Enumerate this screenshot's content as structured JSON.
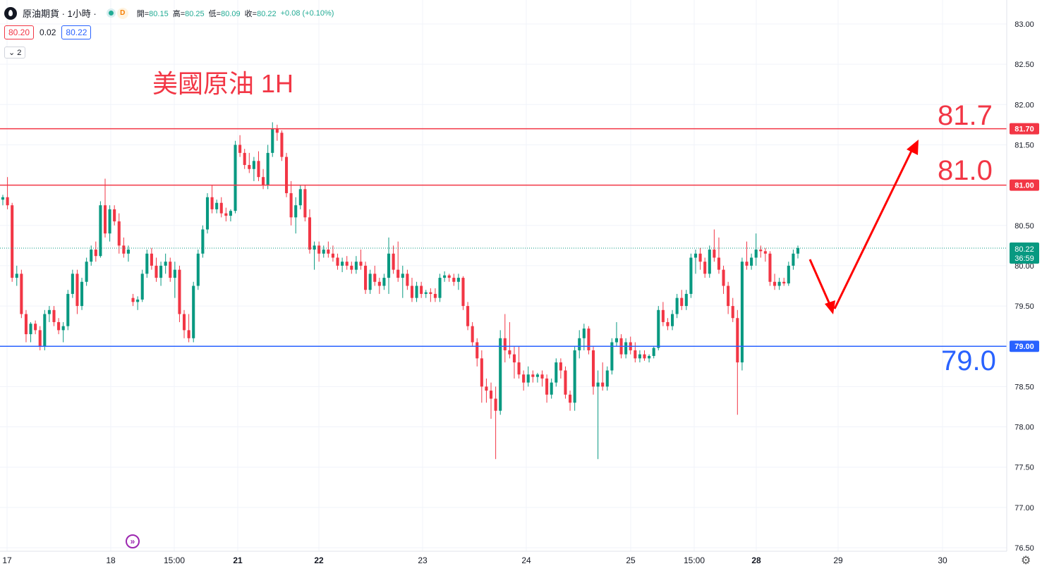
{
  "header": {
    "title": "原油期貨 · 1小時 ·",
    "badge_d": "D",
    "open_label": "開=",
    "open_value": "80.15",
    "high_label": "高=",
    "high_value": "80.25",
    "low_label": "低=",
    "low_value": "80.09",
    "close_label": "收=",
    "close_value": "80.22",
    "change_value": "+0.08 (+0.10%)",
    "bid": "80.20",
    "spread": "0.02",
    "ask": "80.22",
    "indicators_count": "2"
  },
  "annotation": {
    "text": "美國原油 1H"
  },
  "level_labels": [
    {
      "text": "81.7",
      "price": 81.7,
      "color": "#f23645"
    },
    {
      "text": "81.0",
      "price": 81.0,
      "color": "#f23645"
    },
    {
      "text": "79.0",
      "price": 79.0,
      "color": "#2962ff"
    }
  ],
  "chart_data": {
    "type": "candlestick",
    "y_axis": {
      "ticks": [
        "83.00",
        "82.50",
        "82.00",
        "81.50",
        "81.00",
        "80.50",
        "80.00",
        "79.50",
        "79.00",
        "78.50",
        "78.00",
        "77.50",
        "77.00",
        "76.50"
      ],
      "range": [
        76.5,
        83.0
      ]
    },
    "x_axis": {
      "ticks": [
        "17",
        "18",
        "15:00",
        "21",
        "22",
        "23",
        "24",
        "25",
        "15:00",
        "28",
        "29",
        "30"
      ]
    },
    "horizontal_lines": [
      {
        "price": 81.7,
        "label": "81.70",
        "color": "#f23645"
      },
      {
        "price": 81.0,
        "label": "81.00",
        "color": "#f23645"
      },
      {
        "price": 79.0,
        "label": "79.00",
        "color": "#2962ff"
      }
    ],
    "last_price": {
      "value": "80.22",
      "countdown": "36:59",
      "color": "#089981"
    },
    "candles": [
      [
        80.82,
        80.88,
        80.75,
        80.85
      ],
      [
        80.85,
        81.1,
        80.7,
        80.75
      ],
      [
        80.75,
        80.78,
        79.8,
        79.85
      ],
      [
        79.85,
        80.0,
        79.75,
        79.9
      ],
      [
        79.9,
        79.95,
        79.35,
        79.4
      ],
      [
        79.4,
        79.45,
        79.05,
        79.15
      ],
      [
        79.15,
        79.3,
        79.05,
        79.28
      ],
      [
        79.28,
        79.32,
        79.15,
        79.2
      ],
      [
        79.2,
        79.25,
        78.95,
        79.0
      ],
      [
        79.0,
        79.45,
        78.95,
        79.4
      ],
      [
        79.4,
        79.5,
        79.3,
        79.45
      ],
      [
        79.45,
        79.5,
        79.25,
        79.3
      ],
      [
        79.3,
        79.35,
        79.15,
        79.2
      ],
      [
        79.2,
        79.3,
        79.05,
        79.25
      ],
      [
        79.25,
        79.7,
        79.2,
        79.65
      ],
      [
        79.65,
        79.95,
        79.6,
        79.9
      ],
      [
        79.9,
        79.95,
        79.4,
        79.5
      ],
      [
        79.5,
        79.85,
        79.45,
        79.8
      ],
      [
        79.8,
        80.1,
        79.75,
        80.05
      ],
      [
        80.05,
        80.25,
        80.0,
        80.2
      ],
      [
        80.2,
        80.3,
        80.05,
        80.12
      ],
      [
        80.12,
        80.8,
        80.1,
        80.75
      ],
      [
        80.75,
        81.08,
        80.35,
        80.4
      ],
      [
        80.4,
        80.75,
        80.3,
        80.7
      ],
      [
        80.7,
        80.75,
        80.5,
        80.55
      ],
      [
        80.55,
        80.65,
        80.15,
        80.25
      ],
      [
        80.25,
        80.35,
        80.1,
        80.15
      ],
      [
        80.15,
        80.25,
        80.05,
        80.2
      ],
      [
        79.6,
        79.65,
        79.5,
        79.55
      ],
      [
        79.55,
        79.62,
        79.45,
        79.58
      ],
      [
        79.58,
        79.95,
        79.55,
        79.9
      ],
      [
        79.9,
        80.2,
        79.85,
        80.15
      ],
      [
        80.15,
        80.22,
        79.95,
        80.0
      ],
      [
        80.0,
        80.1,
        79.8,
        79.85
      ],
      [
        79.85,
        80.05,
        79.75,
        80.0
      ],
      [
        80.0,
        80.15,
        79.9,
        80.05
      ],
      [
        80.05,
        80.1,
        79.8,
        79.85
      ],
      [
        79.85,
        80.05,
        79.6,
        79.95
      ],
      [
        79.95,
        80.0,
        79.3,
        79.4
      ],
      [
        79.4,
        79.45,
        79.1,
        79.2
      ],
      [
        79.2,
        79.4,
        79.05,
        79.1
      ],
      [
        79.1,
        79.8,
        79.05,
        79.75
      ],
      [
        79.75,
        80.2,
        79.7,
        80.15
      ],
      [
        80.15,
        80.5,
        80.1,
        80.45
      ],
      [
        80.45,
        80.9,
        80.4,
        80.85
      ],
      [
        80.85,
        81.0,
        80.65,
        80.7
      ],
      [
        80.7,
        80.82,
        80.65,
        80.78
      ],
      [
        80.78,
        80.85,
        80.6,
        80.65
      ],
      [
        80.65,
        80.72,
        80.55,
        80.62
      ],
      [
        80.62,
        80.7,
        80.55,
        80.68
      ],
      [
        80.68,
        81.55,
        80.65,
        81.5
      ],
      [
        81.5,
        81.62,
        81.35,
        81.4
      ],
      [
        81.4,
        81.45,
        81.2,
        81.25
      ],
      [
        81.25,
        81.4,
        81.15,
        81.2
      ],
      [
        81.2,
        81.35,
        81.05,
        81.3
      ],
      [
        81.3,
        81.42,
        81.05,
        81.1
      ],
      [
        81.1,
        81.2,
        80.95,
        81.0
      ],
      [
        81.0,
        81.5,
        80.95,
        81.4
      ],
      [
        81.4,
        81.78,
        81.35,
        81.7
      ],
      [
        81.7,
        81.75,
        81.55,
        81.65
      ],
      [
        81.65,
        81.68,
        81.3,
        81.35
      ],
      [
        81.35,
        81.4,
        80.85,
        80.9
      ],
      [
        80.9,
        81.05,
        80.5,
        80.6
      ],
      [
        80.6,
        80.85,
        80.4,
        80.75
      ],
      [
        80.75,
        81.0,
        80.7,
        80.95
      ],
      [
        80.95,
        81.0,
        80.55,
        80.6
      ],
      [
        80.6,
        80.7,
        80.15,
        80.2
      ],
      [
        80.2,
        80.3,
        79.95,
        80.25
      ],
      [
        80.25,
        80.3,
        80.05,
        80.15
      ],
      [
        80.15,
        80.25,
        80.1,
        80.2
      ],
      [
        80.2,
        80.3,
        80.1,
        80.15
      ],
      [
        80.15,
        80.25,
        80.05,
        80.1
      ],
      [
        80.1,
        80.15,
        79.95,
        80.0
      ],
      [
        80.0,
        80.1,
        79.92,
        80.05
      ],
      [
        80.05,
        80.12,
        79.95,
        80.0
      ],
      [
        80.0,
        80.05,
        79.9,
        79.95
      ],
      [
        79.95,
        80.12,
        79.9,
        80.05
      ],
      [
        80.05,
        80.2,
        79.95,
        80.0
      ],
      [
        80.0,
        80.05,
        79.65,
        79.7
      ],
      [
        79.7,
        79.95,
        79.65,
        79.9
      ],
      [
        79.9,
        80.0,
        79.75,
        79.8
      ],
      [
        79.8,
        79.85,
        79.65,
        79.75
      ],
      [
        79.75,
        79.9,
        79.7,
        79.85
      ],
      [
        79.85,
        80.35,
        79.65,
        80.15
      ],
      [
        80.15,
        80.25,
        79.9,
        79.95
      ],
      [
        79.95,
        80.3,
        79.8,
        79.85
      ],
      [
        79.85,
        80.0,
        79.6,
        79.9
      ],
      [
        79.9,
        79.95,
        79.7,
        79.75
      ],
      [
        79.75,
        79.85,
        79.55,
        79.6
      ],
      [
        79.6,
        79.8,
        79.55,
        79.75
      ],
      [
        79.75,
        79.8,
        79.6,
        79.65
      ],
      [
        79.65,
        79.7,
        79.6,
        79.67
      ],
      [
        79.67,
        79.72,
        79.55,
        79.65
      ],
      [
        79.65,
        79.72,
        79.55,
        79.6
      ],
      [
        79.6,
        79.9,
        79.55,
        79.85
      ],
      [
        79.85,
        79.93,
        79.8,
        79.88
      ],
      [
        79.88,
        79.9,
        79.8,
        79.85
      ],
      [
        79.85,
        79.9,
        79.75,
        79.8
      ],
      [
        79.8,
        79.9,
        79.7,
        79.85
      ],
      [
        79.85,
        79.87,
        79.45,
        79.5
      ],
      [
        79.5,
        79.55,
        79.2,
        79.25
      ],
      [
        79.25,
        79.3,
        79.0,
        79.05
      ],
      [
        79.05,
        79.1,
        78.75,
        78.85
      ],
      [
        78.85,
        78.95,
        78.3,
        78.5
      ],
      [
        78.5,
        78.6,
        78.3,
        78.45
      ],
      [
        78.45,
        78.55,
        78.1,
        78.35
      ],
      [
        78.35,
        78.5,
        77.6,
        78.2
      ],
      [
        78.2,
        79.2,
        78.15,
        79.1
      ],
      [
        79.1,
        79.4,
        78.8,
        78.95
      ],
      [
        78.95,
        79.3,
        78.85,
        78.9
      ],
      [
        78.9,
        79.0,
        78.6,
        78.8
      ],
      [
        78.8,
        79.0,
        78.6,
        78.65
      ],
      [
        78.65,
        78.7,
        78.45,
        78.55
      ],
      [
        78.55,
        78.75,
        78.5,
        78.65
      ],
      [
        78.65,
        78.7,
        78.55,
        78.62
      ],
      [
        78.62,
        78.67,
        78.55,
        78.65
      ],
      [
        78.65,
        78.7,
        78.5,
        78.6
      ],
      [
        78.6,
        78.65,
        78.3,
        78.4
      ],
      [
        78.4,
        78.6,
        78.35,
        78.55
      ],
      [
        78.55,
        78.85,
        78.5,
        78.8
      ],
      [
        78.8,
        78.85,
        78.6,
        78.7
      ],
      [
        78.7,
        78.75,
        78.35,
        78.4
      ],
      [
        78.4,
        78.45,
        78.2,
        78.3
      ],
      [
        78.3,
        79.0,
        78.2,
        78.95
      ],
      [
        78.95,
        79.2,
        78.85,
        79.1
      ],
      [
        79.1,
        79.28,
        78.95,
        79.22
      ],
      [
        79.22,
        79.25,
        78.9,
        78.95
      ],
      [
        78.95,
        79.0,
        78.4,
        78.5
      ],
      [
        78.5,
        78.7,
        77.6,
        78.55
      ],
      [
        78.55,
        78.8,
        78.45,
        78.5
      ],
      [
        78.5,
        78.75,
        78.45,
        78.7
      ],
      [
        78.7,
        79.1,
        78.65,
        79.05
      ],
      [
        79.05,
        79.3,
        79.0,
        79.1
      ],
      [
        79.1,
        79.15,
        78.85,
        78.9
      ],
      [
        78.9,
        79.1,
        78.85,
        79.05
      ],
      [
        79.05,
        79.12,
        78.9,
        78.95
      ],
      [
        78.95,
        79.05,
        78.8,
        78.85
      ],
      [
        78.85,
        78.95,
        78.8,
        78.9
      ],
      [
        78.9,
        78.95,
        78.82,
        78.85
      ],
      [
        78.85,
        78.9,
        78.8,
        78.88
      ],
      [
        78.88,
        79.0,
        78.85,
        78.98
      ],
      [
        78.98,
        79.5,
        78.95,
        79.45
      ],
      [
        79.45,
        79.55,
        79.25,
        79.3
      ],
      [
        79.3,
        79.35,
        79.2,
        79.25
      ],
      [
        79.25,
        79.45,
        79.2,
        79.4
      ],
      [
        79.4,
        79.65,
        79.35,
        79.6
      ],
      [
        79.6,
        79.7,
        79.45,
        79.5
      ],
      [
        79.5,
        79.7,
        79.45,
        79.65
      ],
      [
        79.65,
        80.15,
        79.6,
        80.1
      ],
      [
        80.1,
        80.2,
        79.9,
        80.15
      ],
      [
        80.15,
        80.22,
        79.95,
        80.05
      ],
      [
        80.05,
        80.1,
        79.85,
        79.9
      ],
      [
        79.9,
        80.25,
        79.85,
        80.2
      ],
      [
        80.2,
        80.45,
        80.05,
        80.1
      ],
      [
        80.1,
        80.35,
        79.9,
        79.95
      ],
      [
        79.95,
        80.0,
        79.65,
        79.75
      ],
      [
        79.75,
        79.8,
        79.4,
        79.5
      ],
      [
        79.5,
        79.6,
        79.3,
        79.35
      ],
      [
        79.35,
        79.45,
        78.15,
        78.8
      ],
      [
        78.8,
        80.1,
        78.7,
        80.05
      ],
      [
        80.05,
        80.3,
        79.95,
        80.0
      ],
      [
        80.0,
        80.15,
        79.95,
        80.1
      ],
      [
        80.1,
        80.4,
        80.0,
        80.2
      ],
      [
        80.2,
        80.25,
        80.1,
        80.18
      ],
      [
        80.18,
        80.22,
        80.05,
        80.15
      ],
      [
        80.15,
        80.18,
        79.75,
        79.8
      ],
      [
        79.8,
        79.9,
        79.7,
        79.75
      ],
      [
        79.75,
        79.85,
        79.7,
        79.8
      ],
      [
        79.8,
        79.85,
        79.75,
        79.78
      ],
      [
        79.78,
        80.05,
        79.75,
        80.0
      ],
      [
        80.0,
        80.2,
        79.95,
        80.15
      ],
      [
        80.15,
        80.25,
        80.09,
        80.22
      ]
    ]
  }
}
